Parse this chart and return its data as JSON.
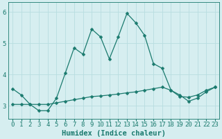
{
  "xlabel": "Humidex (Indice chaleur)",
  "ylabel": "",
  "background_color": "#d6eef0",
  "grid_color": "#b8dde0",
  "line_color": "#1a7a6e",
  "xlim": [
    -0.5,
    23.5
  ],
  "ylim": [
    2.6,
    6.3
  ],
  "yticks": [
    3,
    4,
    5,
    6
  ],
  "xticks": [
    0,
    1,
    2,
    3,
    4,
    5,
    6,
    7,
    8,
    9,
    10,
    11,
    12,
    13,
    14,
    15,
    16,
    17,
    18,
    19,
    20,
    21,
    22,
    23
  ],
  "line1_x": [
    0,
    1,
    2,
    3,
    4,
    5,
    6,
    7,
    8,
    9,
    10,
    11,
    12,
    13,
    14,
    15,
    16,
    17,
    18,
    19,
    20,
    21,
    22,
    23
  ],
  "line1_y": [
    3.55,
    3.35,
    3.05,
    2.85,
    2.85,
    3.25,
    4.05,
    4.85,
    4.65,
    5.45,
    5.2,
    4.5,
    5.2,
    5.95,
    5.65,
    5.25,
    4.35,
    4.2,
    3.5,
    3.35,
    3.15,
    3.25,
    3.45,
    3.6
  ],
  "line2_x": [
    0,
    1,
    2,
    3,
    4,
    5,
    6,
    7,
    8,
    9,
    10,
    11,
    12,
    13,
    14,
    15,
    16,
    17,
    18,
    19,
    20,
    21,
    22,
    23
  ],
  "line2_y": [
    3.05,
    3.05,
    3.05,
    3.05,
    3.05,
    3.1,
    3.15,
    3.2,
    3.25,
    3.3,
    3.32,
    3.35,
    3.38,
    3.42,
    3.45,
    3.5,
    3.55,
    3.6,
    3.5,
    3.3,
    3.28,
    3.35,
    3.5,
    3.6
  ],
  "axis_fontsize": 7.5,
  "tick_fontsize": 6.5,
  "marker_size": 2.5,
  "line_width": 0.9
}
